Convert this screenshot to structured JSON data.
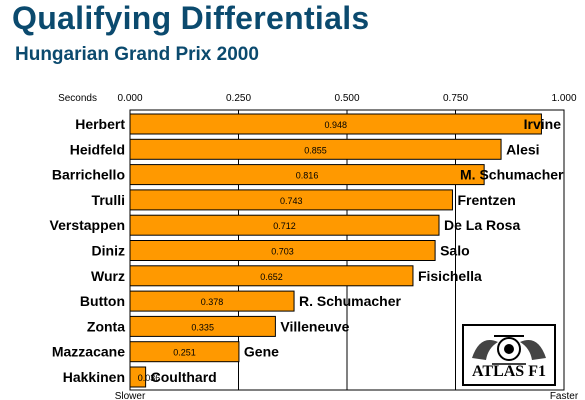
{
  "header": {
    "title": "Qualifying Differentials",
    "subtitle": "Hungarian Grand Prix 2000"
  },
  "logo": {
    "text": "ATLAS F1"
  },
  "colors": {
    "bar": "#ff9900",
    "title": "#0b4a6e",
    "grid": "#000000"
  },
  "chart_data": {
    "type": "bar",
    "orientation": "horizontal",
    "title": "Qualifying Differentials",
    "subtitle": "Hungarian Grand Prix 2000",
    "xlabel": "Seconds",
    "x_min_label": "Slower",
    "x_max_label": "Faster",
    "xlim": [
      0,
      1
    ],
    "xticks": [
      "0.000",
      "0.250",
      "0.500",
      "0.750",
      "1.000"
    ],
    "grid": true,
    "categories": [
      "Herbert",
      "Heidfeld",
      "Barrichello",
      "Trulli",
      "Verstappen",
      "Diniz",
      "Wurz",
      "Button",
      "Zonta",
      "Mazzacane",
      "Hakkinen"
    ],
    "opponents": [
      "Irvine",
      "Alesi",
      "M. Schumacher",
      "Frentzen",
      "De La Rosa",
      "Salo",
      "Fisichella",
      "R. Schumacher",
      "Villeneuve",
      "Gene",
      "Coulthard"
    ],
    "values": [
      0.948,
      0.855,
      0.816,
      0.743,
      0.712,
      0.703,
      0.652,
      0.378,
      0.335,
      0.251,
      0.036
    ],
    "value_labels": [
      "0.948",
      "0.855",
      "0.816",
      "0.743",
      "0.712",
      "0.703",
      "0.652",
      "0.378",
      "0.335",
      "0.251",
      "0.036"
    ]
  }
}
